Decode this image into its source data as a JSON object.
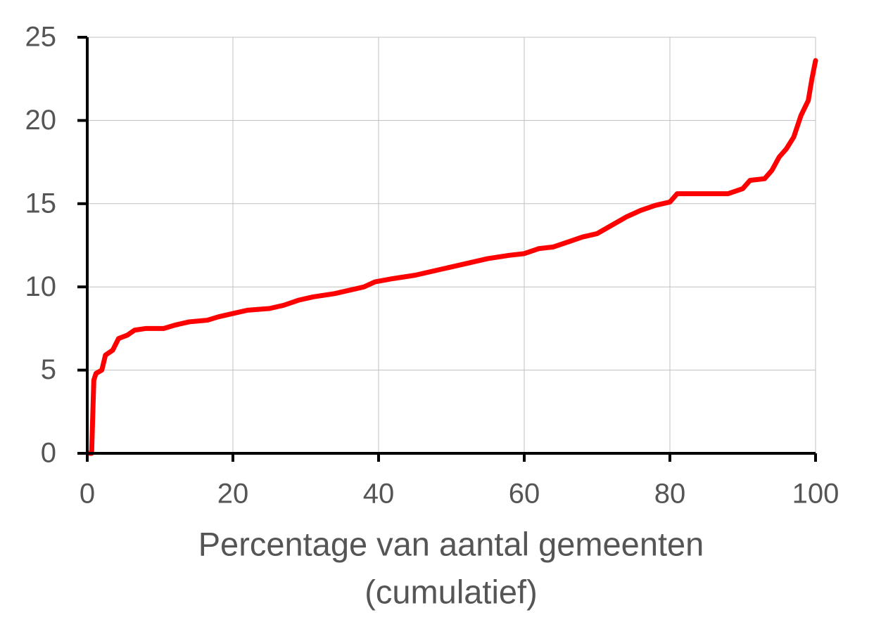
{
  "chart_data": {
    "type": "line",
    "xlabel": [
      "Percentage van aantal gemeenten",
      "(cumulatief)"
    ],
    "xlim": [
      0,
      100
    ],
    "xticks": [
      0,
      20,
      40,
      60,
      80,
      100
    ],
    "ylim": [
      0,
      25
    ],
    "yticks": [
      0,
      5,
      10,
      15,
      20,
      25
    ],
    "grid": true,
    "series": [
      {
        "color": "#ff0000",
        "x": [
          0.3,
          0.6,
          0.9,
          1.2,
          2,
          2.5,
          3.5,
          4.3,
          5.5,
          6.5,
          8,
          10.5,
          12,
          14,
          16.5,
          18,
          20,
          22,
          25,
          27,
          29,
          31,
          34,
          36,
          38,
          39.5,
          42,
          45,
          48,
          50,
          52,
          55,
          58,
          60,
          62,
          64,
          66,
          68,
          70,
          72,
          74,
          76,
          78,
          80,
          81,
          84,
          88,
          90,
          91,
          93,
          94,
          95,
          96,
          97,
          98,
          99,
          99.5,
          100
        ],
        "values": [
          0,
          0,
          4.4,
          4.8,
          5,
          5.9,
          6.2,
          6.9,
          7.1,
          7.4,
          7.5,
          7.5,
          7.7,
          7.9,
          8,
          8.2,
          8.4,
          8.6,
          8.7,
          8.9,
          9.2,
          9.4,
          9.6,
          9.8,
          10,
          10.3,
          10.5,
          10.7,
          11,
          11.2,
          11.4,
          11.7,
          11.9,
          12,
          12.3,
          12.4,
          12.7,
          13,
          13.2,
          13.7,
          14.2,
          14.6,
          14.9,
          15.1,
          15.6,
          15.6,
          15.6,
          15.9,
          16.4,
          16.5,
          17,
          17.8,
          18.3,
          19,
          20.3,
          21.2,
          22.5,
          23.6
        ]
      }
    ]
  }
}
